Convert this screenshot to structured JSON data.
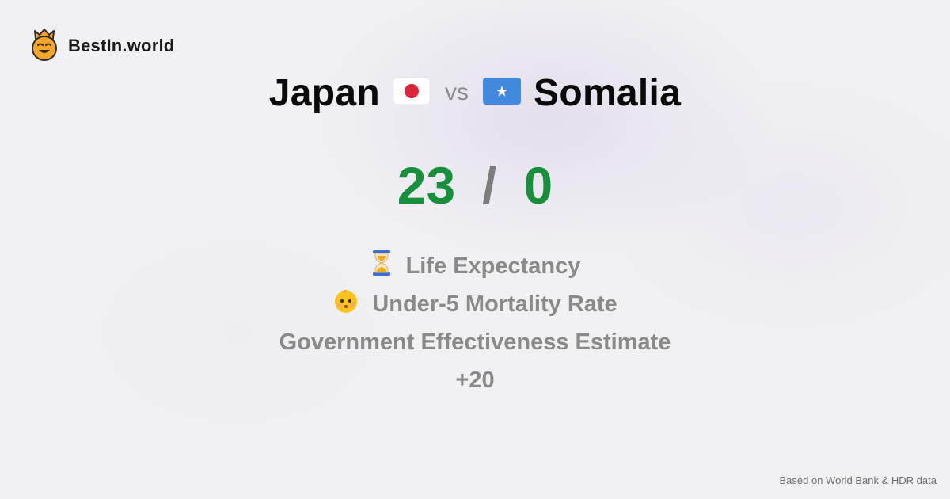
{
  "brand": {
    "name": "BestIn.world",
    "icon": "crown-smiley-icon"
  },
  "comparison": {
    "left_country": "Japan",
    "left_flag": "japan-flag-icon",
    "vs_label": "vs",
    "right_country": "Somalia",
    "right_flag": "somalia-flag-icon"
  },
  "score": {
    "left": "23",
    "separator": "/",
    "right": "0"
  },
  "metrics": [
    {
      "icon": "hourglass-icon",
      "label": "Life Expectancy"
    },
    {
      "icon": "baby-face-icon",
      "label": "Under-5 Mortality Rate"
    },
    {
      "icon": "",
      "label": "Government Effectiveness Estimate"
    },
    {
      "icon": "",
      "label": "+20"
    }
  ],
  "footer": {
    "source_note": "Based on World Bank & HDR data"
  },
  "colors": {
    "score_green": "#188f3b",
    "muted_gray": "#8a8a8a",
    "japan_red": "#e0243c",
    "somalia_blue": "#4189dd"
  }
}
